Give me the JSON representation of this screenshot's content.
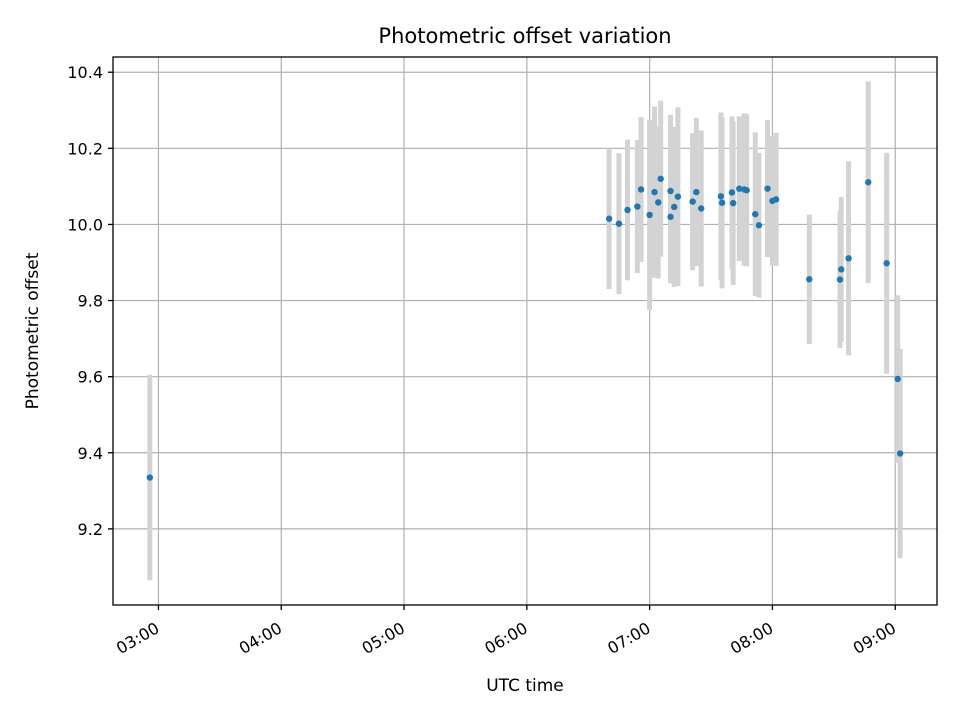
{
  "chart_data": {
    "type": "scatter",
    "title": "Photometric offset variation",
    "xlabel": "UTC time",
    "ylabel": "Photometric offset",
    "x_unit": "hours UTC",
    "xlim": [
      2.63,
      9.34
    ],
    "ylim": [
      9.0,
      10.44
    ],
    "x_ticks": [
      {
        "value": 3,
        "label": "03:00"
      },
      {
        "value": 4,
        "label": "04:00"
      },
      {
        "value": 5,
        "label": "05:00"
      },
      {
        "value": 6,
        "label": "06:00"
      },
      {
        "value": 7,
        "label": "07:00"
      },
      {
        "value": 8,
        "label": "08:00"
      },
      {
        "value": 9,
        "label": "09:00"
      }
    ],
    "y_ticks": [
      {
        "value": 9.2,
        "label": "9.2"
      },
      {
        "value": 9.4,
        "label": "9.4"
      },
      {
        "value": 9.6,
        "label": "9.6"
      },
      {
        "value": 9.8,
        "label": "9.8"
      },
      {
        "value": 10.0,
        "label": "10.0"
      },
      {
        "value": 10.2,
        "label": "10.2"
      },
      {
        "value": 10.4,
        "label": "10.4"
      }
    ],
    "grid": true,
    "colors": {
      "points": "#1f77b4",
      "errorbars": "#d3d3d3"
    },
    "points": [
      {
        "x": 2.93,
        "y": 9.335,
        "yerr": 0.27
      },
      {
        "x": 6.67,
        "y": 10.015,
        "yerr": 0.185
      },
      {
        "x": 6.75,
        "y": 10.002,
        "yerr": 0.185
      },
      {
        "x": 6.82,
        "y": 10.038,
        "yerr": 0.185
      },
      {
        "x": 6.9,
        "y": 10.047,
        "yerr": 0.175
      },
      {
        "x": 6.93,
        "y": 10.092,
        "yerr": 0.19
      },
      {
        "x": 7.0,
        "y": 10.025,
        "yerr": 0.25
      },
      {
        "x": 7.04,
        "y": 10.085,
        "yerr": 0.225
      },
      {
        "x": 7.07,
        "y": 10.058,
        "yerr": 0.2
      },
      {
        "x": 7.09,
        "y": 10.12,
        "yerr": 0.205
      },
      {
        "x": 7.17,
        "y": 10.02,
        "yerr": 0.175
      },
      {
        "x": 7.17,
        "y": 10.088,
        "yerr": 0.2
      },
      {
        "x": 7.2,
        "y": 10.046,
        "yerr": 0.21
      },
      {
        "x": 7.23,
        "y": 10.073,
        "yerr": 0.235
      },
      {
        "x": 7.35,
        "y": 10.06,
        "yerr": 0.18
      },
      {
        "x": 7.38,
        "y": 10.085,
        "yerr": 0.195
      },
      {
        "x": 7.42,
        "y": 10.042,
        "yerr": 0.205
      },
      {
        "x": 7.58,
        "y": 10.074,
        "yerr": 0.22
      },
      {
        "x": 7.59,
        "y": 10.057,
        "yerr": 0.225
      },
      {
        "x": 7.67,
        "y": 10.084,
        "yerr": 0.2
      },
      {
        "x": 7.68,
        "y": 10.056,
        "yerr": 0.215
      },
      {
        "x": 7.73,
        "y": 10.094,
        "yerr": 0.19
      },
      {
        "x": 7.77,
        "y": 10.092,
        "yerr": 0.2
      },
      {
        "x": 7.79,
        "y": 10.09,
        "yerr": 0.2
      },
      {
        "x": 7.86,
        "y": 10.027,
        "yerr": 0.215
      },
      {
        "x": 7.89,
        "y": 9.998,
        "yerr": 0.19
      },
      {
        "x": 7.96,
        "y": 10.094,
        "yerr": 0.18
      },
      {
        "x": 8.0,
        "y": 10.062,
        "yerr": 0.17
      },
      {
        "x": 8.03,
        "y": 10.066,
        "yerr": 0.175
      },
      {
        "x": 8.3,
        "y": 9.856,
        "yerr": 0.17
      },
      {
        "x": 8.55,
        "y": 9.855,
        "yerr": 0.18
      },
      {
        "x": 8.56,
        "y": 9.882,
        "yerr": 0.19
      },
      {
        "x": 8.62,
        "y": 9.911,
        "yerr": 0.255
      },
      {
        "x": 8.78,
        "y": 10.111,
        "yerr": 0.265
      },
      {
        "x": 8.93,
        "y": 9.898,
        "yerr": 0.29
      },
      {
        "x": 9.02,
        "y": 9.594,
        "yerr": 0.22
      },
      {
        "x": 9.04,
        "y": 9.398,
        "yerr": 0.275
      }
    ]
  }
}
